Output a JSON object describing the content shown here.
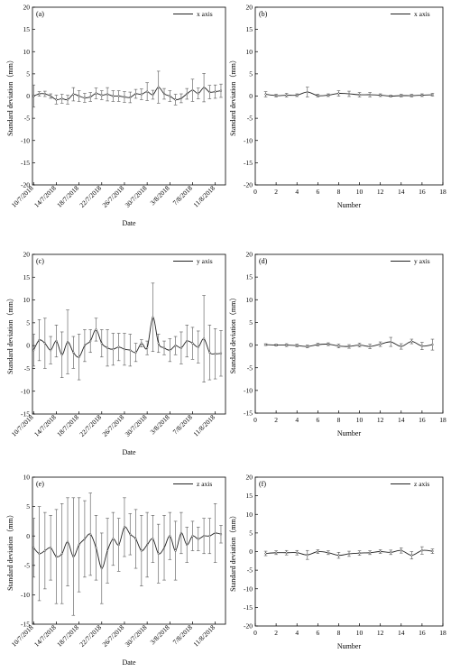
{
  "chart_data": [
    {
      "type": "line",
      "panel": "(a)",
      "legend": "x axis",
      "xlabel": "Date",
      "ylabel": "Standard deviation（mm）",
      "ylim": [
        -20,
        20
      ],
      "yticks": [
        -20,
        -15,
        -10,
        -5,
        0,
        5,
        10,
        15,
        20
      ],
      "xtick_labels": [
        "10/7/2018",
        "14/7/2018",
        "18/7/2018",
        "22/7/2018",
        "26/7/2018",
        "30/7/2018",
        "3/8/2018",
        "7/8/2018",
        "11/8/2018"
      ],
      "x": [
        "10/7/2018",
        "11/7/2018",
        "12/7/2018",
        "13/7/2018",
        "14/7/2018",
        "15/7/2018",
        "16/7/2018",
        "17/7/2018",
        "18/7/2018",
        "19/7/2018",
        "20/7/2018",
        "21/7/2018",
        "22/7/2018",
        "23/7/2018",
        "24/7/2018",
        "25/7/2018",
        "26/7/2018",
        "27/7/2018",
        "28/7/2018",
        "29/7/2018",
        "30/7/2018",
        "31/7/2018",
        "1/8/2018",
        "2/8/2018",
        "3/8/2018",
        "4/8/2018",
        "5/8/2018",
        "6/8/2018",
        "7/8/2018",
        "8/8/2018",
        "9/8/2018",
        "10/8/2018",
        "11/8/2018",
        "12/8/2018"
      ],
      "y": [
        0,
        0.5,
        0.5,
        0,
        -0.8,
        -0.6,
        -0.8,
        0.4,
        0,
        -0.4,
        -0.2,
        0.6,
        0.2,
        0.4,
        0,
        0,
        -0.2,
        -0.3,
        0.5,
        0.4,
        1.0,
        0.3,
        2.0,
        0.5,
        0,
        -0.8,
        -0.5,
        0.5,
        1.3,
        0.6,
        1.9,
        0.9,
        1.0,
        1.2
      ],
      "err": [
        2.5,
        0.5,
        0.6,
        0.5,
        1.0,
        1.0,
        1.0,
        1.5,
        1.2,
        1.0,
        1.0,
        1.2,
        1.0,
        1.5,
        1.2,
        1.2,
        1.2,
        1.2,
        1.0,
        1.2,
        2.0,
        1.0,
        3.6,
        1.2,
        1.2,
        1.2,
        1.0,
        1.2,
        2.5,
        1.2,
        3.2,
        1.5,
        1.5,
        1.5
      ]
    },
    {
      "type": "line",
      "panel": "(b)",
      "legend": "x axis",
      "xlabel": "Number",
      "ylabel": "Standard deviation（mm）",
      "ylim": [
        -20,
        20
      ],
      "yticks": [
        -20,
        -15,
        -10,
        -5,
        0,
        5,
        10,
        15,
        20
      ],
      "xlim": [
        0,
        18
      ],
      "xticks": [
        0,
        2,
        4,
        6,
        8,
        10,
        12,
        14,
        16,
        18
      ],
      "x": [
        1,
        2,
        3,
        4,
        5,
        6,
        7,
        8,
        9,
        10,
        11,
        12,
        13,
        14,
        15,
        16,
        17
      ],
      "y": [
        0.4,
        0.1,
        0.2,
        0.2,
        0.9,
        0.1,
        0.2,
        0.6,
        0.5,
        0.3,
        0.3,
        0.2,
        0,
        0.1,
        0.1,
        0.2,
        0.3
      ],
      "err": [
        0.6,
        0.3,
        0.4,
        0.3,
        1.1,
        0.3,
        0.3,
        0.6,
        0.6,
        0.5,
        0.5,
        0.3,
        0.2,
        0.3,
        0.3,
        0.3,
        0.3
      ]
    },
    {
      "type": "line",
      "panel": "(c)",
      "legend": "y axis",
      "xlabel": "Date",
      "ylabel": "Standard deviation（mm）",
      "ylim": [
        -15,
        20
      ],
      "yticks": [
        -15,
        -10,
        -5,
        0,
        5,
        10,
        15,
        20
      ],
      "xtick_labels": [
        "10/7/2018",
        "14/7/2018",
        "18/7/2018",
        "22/7/2018",
        "26/7/2018",
        "30/7/2018",
        "3/8/2018",
        "7/8/2018",
        "11/8/2018"
      ],
      "x": [
        "10/7/2018",
        "11/7/2018",
        "12/7/2018",
        "13/7/2018",
        "14/7/2018",
        "15/7/2018",
        "16/7/2018",
        "17/7/2018",
        "18/7/2018",
        "19/7/2018",
        "20/7/2018",
        "21/7/2018",
        "22/7/2018",
        "23/7/2018",
        "24/7/2018",
        "25/7/2018",
        "26/7/2018",
        "27/7/2018",
        "28/7/2018",
        "29/7/2018",
        "30/7/2018",
        "31/7/2018",
        "1/8/2018",
        "2/8/2018",
        "3/8/2018",
        "4/8/2018",
        "5/8/2018",
        "6/8/2018",
        "7/8/2018",
        "8/8/2018",
        "9/8/2018",
        "10/8/2018",
        "11/8/2018",
        "12/8/2018"
      ],
      "y": [
        -1.0,
        1.2,
        0.5,
        -1.0,
        1.0,
        -2.0,
        0.8,
        -1.5,
        -2.5,
        0,
        1.0,
        3.5,
        0.5,
        -0.5,
        -0.8,
        -0.3,
        -0.8,
        -1.0,
        -1.5,
        0.5,
        -0.5,
        6.2,
        0.5,
        -0.5,
        -1.0,
        0,
        -0.5,
        1.0,
        0.5,
        -0.3,
        1.5,
        -1.5,
        -1.8,
        -1.7
      ],
      "err": [
        3.5,
        4.5,
        5.5,
        3.0,
        3.5,
        5.0,
        7.0,
        3.5,
        5.0,
        3.5,
        2.5,
        2.5,
        3.0,
        4.0,
        3.5,
        3.0,
        3.5,
        3.5,
        2.0,
        0.8,
        1.5,
        7.5,
        2.0,
        1.5,
        2.5,
        2.0,
        3.5,
        3.5,
        3.5,
        3.5,
        9.5,
        6.0,
        5.5,
        5.0
      ]
    },
    {
      "type": "line",
      "panel": "(d)",
      "legend": "y axis",
      "xlabel": "Number",
      "ylabel": "Standard deviation（mm）",
      "ylim": [
        -15,
        20
      ],
      "yticks": [
        -15,
        -10,
        -5,
        0,
        5,
        10,
        15,
        20
      ],
      "xlim": [
        0,
        18
      ],
      "xticks": [
        0,
        2,
        4,
        6,
        8,
        10,
        12,
        14,
        16,
        18
      ],
      "x": [
        1,
        2,
        3,
        4,
        5,
        6,
        7,
        8,
        9,
        10,
        11,
        12,
        13,
        14,
        15,
        16,
        17
      ],
      "y": [
        0.1,
        0,
        0,
        -0.1,
        -0.3,
        0.1,
        0.2,
        -0.2,
        -0.3,
        0,
        -0.3,
        0.2,
        0.7,
        -0.3,
        0.8,
        -0.2,
        0.1
      ],
      "err": [
        0.2,
        0.2,
        0.3,
        0.3,
        0.3,
        0.3,
        0.3,
        0.4,
        0.4,
        0.4,
        0.5,
        0.5,
        1.0,
        0.6,
        0.5,
        0.8,
        1.2
      ]
    },
    {
      "type": "line",
      "panel": "(e)",
      "legend": "z axis",
      "xlabel": "Date",
      "ylabel": "Standard deviation（mm）",
      "ylim": [
        -15,
        10
      ],
      "yticks": [
        -15,
        -10,
        -5,
        0,
        5,
        10
      ],
      "xtick_labels": [
        "10/7/2018",
        "14/7/2018",
        "18/7/2018",
        "22/7/2018",
        "26/7/2018",
        "30/7/2018",
        "3/8/2018",
        "7/8/2018",
        "11/8/2018"
      ],
      "x": [
        "10/7/2018",
        "11/7/2018",
        "12/7/2018",
        "13/7/2018",
        "14/7/2018",
        "15/7/2018",
        "16/7/2018",
        "17/7/2018",
        "18/7/2018",
        "19/7/2018",
        "20/7/2018",
        "21/7/2018",
        "22/7/2018",
        "23/7/2018",
        "24/7/2018",
        "25/7/2018",
        "26/7/2018",
        "27/7/2018",
        "28/7/2018",
        "29/7/2018",
        "30/7/2018",
        "31/7/2018",
        "1/8/2018",
        "2/8/2018",
        "3/8/2018",
        "4/8/2018",
        "5/8/2018",
        "6/8/2018",
        "7/8/2018",
        "8/8/2018",
        "9/8/2018",
        "10/8/2018",
        "11/8/2018",
        "12/8/2018"
      ],
      "y": [
        -2.0,
        -3.0,
        -2.5,
        -2.0,
        -3.5,
        -3.0,
        -1.0,
        -3.5,
        -1.5,
        -0.5,
        0.3,
        -2.0,
        -5.5,
        -2.5,
        -0.5,
        -1.5,
        1.5,
        0.3,
        -0.5,
        -2.5,
        -1.5,
        -0.5,
        -3.0,
        -2.0,
        0,
        -2.5,
        0.5,
        -1.5,
        0,
        -0.5,
        0,
        0,
        0.5,
        0.3
      ],
      "err": [
        5.0,
        8.0,
        6.5,
        5.5,
        8.0,
        8.5,
        7.5,
        10.0,
        8.0,
        6.5,
        7.0,
        5.5,
        6.0,
        5.5,
        4.5,
        4.5,
        5.0,
        3.5,
        5.0,
        6.0,
        5.5,
        4.0,
        5.0,
        5.5,
        4.0,
        5.0,
        3.5,
        3.0,
        2.5,
        2.0,
        3.0,
        3.0,
        5.0,
        1.5
      ]
    },
    {
      "type": "line",
      "panel": "(f)",
      "legend": "z axis",
      "xlabel": "Number",
      "ylabel": "Standard deviation（mm）",
      "ylim": [
        -20,
        20
      ],
      "yticks": [
        -20,
        -15,
        -10,
        -5,
        0,
        5,
        10,
        15,
        20
      ],
      "xlim": [
        0,
        18
      ],
      "xticks": [
        0,
        2,
        4,
        6,
        8,
        10,
        12,
        14,
        16,
        18
      ],
      "x": [
        1,
        2,
        3,
        4,
        5,
        6,
        7,
        8,
        9,
        10,
        11,
        12,
        13,
        14,
        15,
        16,
        17
      ],
      "y": [
        -0.5,
        -0.3,
        -0.3,
        -0.3,
        -0.9,
        0,
        -0.3,
        -1.0,
        -0.6,
        -0.4,
        -0.3,
        0,
        -0.2,
        0.3,
        -1.0,
        0.3,
        0.1
      ],
      "err": [
        0.6,
        0.5,
        0.6,
        0.6,
        1.2,
        0.5,
        0.5,
        0.8,
        0.7,
        0.6,
        0.5,
        0.5,
        0.6,
        0.7,
        1.0,
        1.0,
        0.6
      ]
    }
  ]
}
